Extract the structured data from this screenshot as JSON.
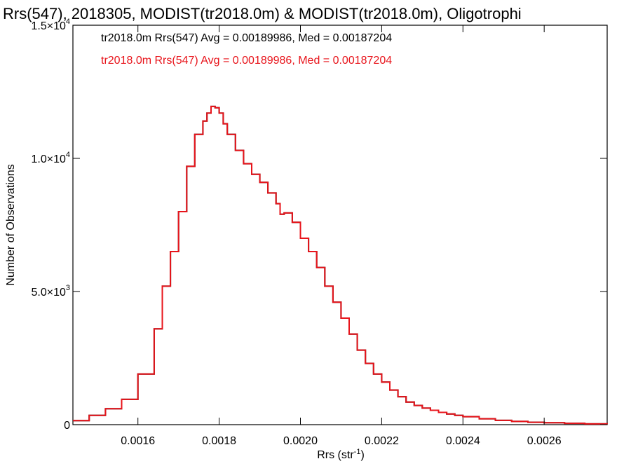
{
  "chart_data": {
    "type": "line",
    "step": true,
    "title": "Rrs(547), 2018305, MODIST(tr2018.0m) & MODIST(tr2018.0m), Oligotrophi",
    "xlabel": "Rrs (str",
    "xlabel_sup": "-1",
    "xlabel_end": ")",
    "ylabel": "Number of Observations",
    "xlim": [
      0.00144,
      0.002755
    ],
    "ylim": [
      0,
      15000
    ],
    "xticks": [
      {
        "value": 0.0016,
        "label": "0.0016"
      },
      {
        "value": 0.0018,
        "label": "0.0018"
      },
      {
        "value": 0.002,
        "label": "0.0020"
      },
      {
        "value": 0.0022,
        "label": "0.0022"
      },
      {
        "value": 0.0024,
        "label": "0.0024"
      },
      {
        "value": 0.0026,
        "label": "0.0026"
      }
    ],
    "yticks": [
      {
        "value": 0,
        "mant": "0",
        "exp": ""
      },
      {
        "value": 5000,
        "mant": "5.0×10",
        "exp": "3"
      },
      {
        "value": 10000,
        "mant": "1.0×10",
        "exp": "4"
      },
      {
        "value": 15000,
        "mant": "1.5×10",
        "exp": "4"
      }
    ],
    "annotations": [
      {
        "text": "tr2018.0m Rrs(547) Avg = 0.00189986, Med = 0.00187204",
        "color": "#000000"
      },
      {
        "text": "tr2018.0m Rrs(547) Avg = 0.00189986, Med = 0.00187204",
        "color": "#e8141b"
      }
    ],
    "series": [
      {
        "color": "#000000",
        "x": [
          0.00144,
          0.00148,
          0.00152,
          0.00156,
          0.0016,
          0.00164,
          0.00166,
          0.00168,
          0.0017,
          0.00172,
          0.00174,
          0.00176,
          0.00177,
          0.00178,
          0.00179,
          0.0018,
          0.00181,
          0.00182,
          0.00184,
          0.00186,
          0.00188,
          0.0019,
          0.00192,
          0.00194,
          0.00195,
          0.00196,
          0.00198,
          0.002,
          0.00202,
          0.00204,
          0.00206,
          0.00208,
          0.0021,
          0.00212,
          0.00214,
          0.00216,
          0.00218,
          0.0022,
          0.00222,
          0.00224,
          0.00226,
          0.00228,
          0.0023,
          0.00232,
          0.00234,
          0.00236,
          0.00238,
          0.0024,
          0.00244,
          0.00248,
          0.00252,
          0.00256,
          0.0026,
          0.00265,
          0.0027,
          0.002755
        ],
        "y": [
          150,
          350,
          600,
          950,
          1900,
          3600,
          5200,
          6500,
          8000,
          9700,
          10900,
          11400,
          11700,
          11950,
          11900,
          11700,
          11300,
          10900,
          10300,
          9800,
          9400,
          9100,
          8700,
          8300,
          7900,
          7950,
          7600,
          7000,
          6500,
          5900,
          5200,
          4600,
          4000,
          3400,
          2800,
          2300,
          1900,
          1600,
          1300,
          1050,
          850,
          720,
          620,
          540,
          460,
          400,
          350,
          300,
          220,
          160,
          120,
          90,
          70,
          50,
          30,
          20
        ]
      },
      {
        "color": "#e8141b",
        "x": [
          0.00144,
          0.00148,
          0.00152,
          0.00156,
          0.0016,
          0.00164,
          0.00166,
          0.00168,
          0.0017,
          0.00172,
          0.00174,
          0.00176,
          0.00177,
          0.00178,
          0.00179,
          0.0018,
          0.00181,
          0.00182,
          0.00184,
          0.00186,
          0.00188,
          0.0019,
          0.00192,
          0.00194,
          0.00195,
          0.00196,
          0.00198,
          0.002,
          0.00202,
          0.00204,
          0.00206,
          0.00208,
          0.0021,
          0.00212,
          0.00214,
          0.00216,
          0.00218,
          0.0022,
          0.00222,
          0.00224,
          0.00226,
          0.00228,
          0.0023,
          0.00232,
          0.00234,
          0.00236,
          0.00238,
          0.0024,
          0.00244,
          0.00248,
          0.00252,
          0.00256,
          0.0026,
          0.00265,
          0.0027,
          0.002755
        ],
        "y": [
          150,
          350,
          600,
          950,
          1900,
          3600,
          5200,
          6500,
          8000,
          9700,
          10900,
          11400,
          11700,
          11950,
          11900,
          11700,
          11300,
          10900,
          10300,
          9800,
          9400,
          9100,
          8700,
          8300,
          7900,
          7950,
          7600,
          7000,
          6500,
          5900,
          5200,
          4600,
          4000,
          3400,
          2800,
          2300,
          1900,
          1600,
          1300,
          1050,
          850,
          720,
          620,
          540,
          460,
          400,
          350,
          300,
          220,
          160,
          120,
          90,
          70,
          50,
          30,
          20
        ]
      }
    ]
  }
}
